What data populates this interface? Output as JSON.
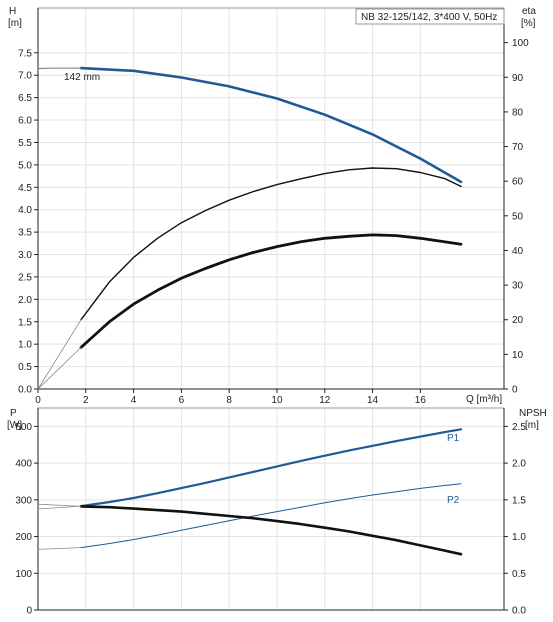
{
  "chart_data": [
    {
      "type": "line",
      "title": "NB 32-125/142, 3*400 V, 50Hz",
      "curve_label": "142 mm",
      "xlabel": "Q [m³/h]",
      "ylabel_left": "H\n[m]",
      "ylabel_right": "eta\n[%]",
      "xlim": [
        0,
        19.5
      ],
      "ylim_left": [
        0,
        8.5
      ],
      "ylim_right": [
        0,
        110
      ],
      "x_ticks": [
        0,
        2,
        4,
        6,
        8,
        10,
        12,
        14,
        16
      ],
      "y_ticks_left": [
        0.0,
        0.5,
        1.0,
        1.5,
        2.0,
        2.5,
        3.0,
        3.5,
        4.0,
        4.5,
        5.0,
        5.5,
        6.0,
        6.5,
        7.0,
        7.5
      ],
      "y_ticks_right": [
        0,
        10,
        20,
        30,
        40,
        50,
        60,
        70,
        80,
        90,
        100
      ],
      "grid": true,
      "series": [
        {
          "key": "head",
          "axis": "left",
          "color": "#1f5a96",
          "width": 2.6,
          "x": [
            1.8,
            4,
            6,
            8,
            10,
            12,
            14,
            16,
            17.7
          ],
          "y": [
            7.16,
            7.1,
            6.95,
            6.75,
            6.48,
            6.12,
            5.68,
            5.14,
            4.62
          ]
        },
        {
          "key": "head_extension",
          "axis": "left",
          "color": "#777777",
          "width": 1,
          "x": [
            0,
            0.6,
            1.2,
            1.8
          ],
          "y": [
            7.15,
            7.16,
            7.16,
            7.16
          ]
        },
        {
          "key": "eta_pump",
          "axis": "right",
          "color": "#111111",
          "width": 1.4,
          "x": [
            1.8,
            3,
            4,
            5,
            6,
            7,
            8,
            9,
            10,
            11,
            12,
            13,
            14,
            15,
            16,
            17,
            17.7
          ],
          "y": [
            20,
            31,
            38,
            43.5,
            48,
            51.5,
            54.5,
            57,
            59,
            60.7,
            62.2,
            63.3,
            63.8,
            63.6,
            62.5,
            60.8,
            58.5
          ]
        },
        {
          "key": "eta_pump_extension",
          "axis": "right",
          "color": "#888888",
          "width": 0.8,
          "x": [
            0,
            1.8
          ],
          "y": [
            0,
            20
          ]
        },
        {
          "key": "eta_total",
          "axis": "right",
          "color": "#111111",
          "width": 2.8,
          "x": [
            1.8,
            3,
            4,
            5,
            6,
            7,
            8,
            9,
            10,
            11,
            12,
            13,
            14,
            15,
            16,
            17,
            17.7
          ],
          "y": [
            12,
            19.5,
            24.5,
            28.5,
            32,
            34.8,
            37.3,
            39.4,
            41.1,
            42.5,
            43.5,
            44.1,
            44.5,
            44.3,
            43.5,
            42.5,
            41.8
          ]
        },
        {
          "key": "eta_total_extension",
          "axis": "right",
          "color": "#888888",
          "width": 0.8,
          "x": [
            0,
            1.8
          ],
          "y": [
            0,
            12
          ]
        }
      ]
    },
    {
      "type": "line",
      "ylabel_left": "P\n[W]",
      "ylabel_right": "NPSH\n[m]",
      "xlim": [
        0,
        19.5
      ],
      "ylim_left": [
        0,
        550
      ],
      "ylim_right": [
        0,
        2.75
      ],
      "y_ticks_left": [
        0,
        100,
        200,
        300,
        400,
        500
      ],
      "y_ticks_right": [
        "0.0",
        "0.5",
        "1.0",
        "1.5",
        "2.0",
        "2.5"
      ],
      "grid": true,
      "series": [
        {
          "name": "P1",
          "key": "p1",
          "axis": "left",
          "color": "#1f5a96",
          "width": 2.2,
          "x": [
            1.8,
            3,
            4,
            5,
            6,
            7,
            8,
            9,
            10,
            11,
            12,
            13,
            14,
            15,
            16,
            17,
            17.7
          ],
          "y": [
            283,
            294,
            305,
            318,
            332,
            346,
            361,
            376,
            391,
            406,
            420,
            434,
            447,
            460,
            472,
            484,
            492
          ]
        },
        {
          "key": "p1_extension",
          "axis": "left",
          "color": "#888888",
          "width": 0.8,
          "x": [
            0,
            1.8
          ],
          "y": [
            275,
            283
          ]
        },
        {
          "name": "P2",
          "key": "p2",
          "axis": "left",
          "color": "#1f5a96",
          "width": 1,
          "x": [
            1.8,
            3,
            4,
            5,
            6,
            7,
            8,
            9,
            10,
            11,
            12,
            13,
            14,
            15,
            16,
            17,
            17.7
          ],
          "y": [
            170,
            181,
            192,
            204,
            217,
            230,
            243,
            256,
            268,
            280,
            292,
            303,
            313,
            322,
            331,
            339,
            344
          ]
        },
        {
          "key": "p2_extension",
          "axis": "left",
          "color": "#888888",
          "width": 0.8,
          "x": [
            0,
            1.8
          ],
          "y": [
            165,
            170
          ]
        },
        {
          "key": "npsh",
          "axis": "right",
          "color": "#111111",
          "width": 2.6,
          "x": [
            1.8,
            3,
            4,
            5,
            6,
            7,
            8,
            9,
            10,
            11,
            12,
            13,
            14,
            15,
            16,
            17,
            17.7
          ],
          "y": [
            1.41,
            1.4,
            1.38,
            1.36,
            1.34,
            1.31,
            1.28,
            1.25,
            1.21,
            1.17,
            1.12,
            1.07,
            1.01,
            0.95,
            0.88,
            0.81,
            0.76
          ]
        },
        {
          "key": "npsh_extension",
          "axis": "right",
          "color": "#888888",
          "width": 0.8,
          "x": [
            0,
            1.8
          ],
          "y": [
            1.44,
            1.41
          ]
        }
      ]
    }
  ]
}
